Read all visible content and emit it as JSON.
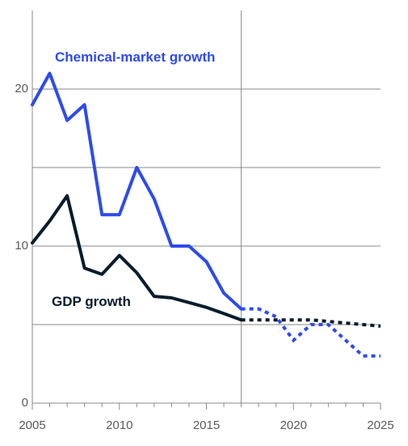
{
  "chart_data": {
    "type": "line",
    "title": "",
    "xlabel": "",
    "ylabel": "",
    "xlim": [
      2005,
      2025
    ],
    "ylim": [
      0,
      25
    ],
    "x_ticks": [
      2005,
      2010,
      2015,
      2020,
      2025
    ],
    "y_ticks": [
      0,
      10,
      20
    ],
    "y_gridlines": [
      5,
      10,
      15,
      20
    ],
    "grid": true,
    "divider_year": 2017,
    "series": [
      {
        "name": "Chemical-market growth",
        "color": "#2e4bea",
        "actual": {
          "x": [
            2005,
            2006,
            2007,
            2008,
            2009,
            2010,
            2011,
            2012,
            2013,
            2014,
            2015,
            2016,
            2017
          ],
          "y": [
            19.0,
            21.0,
            18.0,
            19.0,
            12.0,
            12.0,
            15.0,
            13.0,
            10.0,
            10.0,
            9.0,
            7.0,
            6.0
          ]
        },
        "forecast": {
          "x": [
            2017,
            2018,
            2019,
            2020,
            2021,
            2022,
            2023,
            2024,
            2025
          ],
          "y": [
            6.0,
            6.0,
            5.5,
            4.0,
            5.0,
            5.0,
            4.0,
            3.0,
            3.0
          ]
        }
      },
      {
        "name": "GDP growth",
        "color": "#051c2c",
        "actual": {
          "x": [
            2005,
            2006,
            2007,
            2008,
            2009,
            2010,
            2011,
            2012,
            2013,
            2014,
            2015,
            2016,
            2017
          ],
          "y": [
            10.2,
            11.6,
            13.2,
            8.6,
            8.2,
            9.4,
            8.3,
            6.8,
            6.7,
            6.4,
            6.1,
            5.7,
            5.3
          ]
        },
        "forecast": {
          "x": [
            2017,
            2018,
            2019,
            2020,
            2021,
            2022,
            2023,
            2024,
            2025
          ],
          "y": [
            5.3,
            5.3,
            5.3,
            5.3,
            5.3,
            5.2,
            5.1,
            5.0,
            4.9
          ]
        }
      }
    ]
  }
}
